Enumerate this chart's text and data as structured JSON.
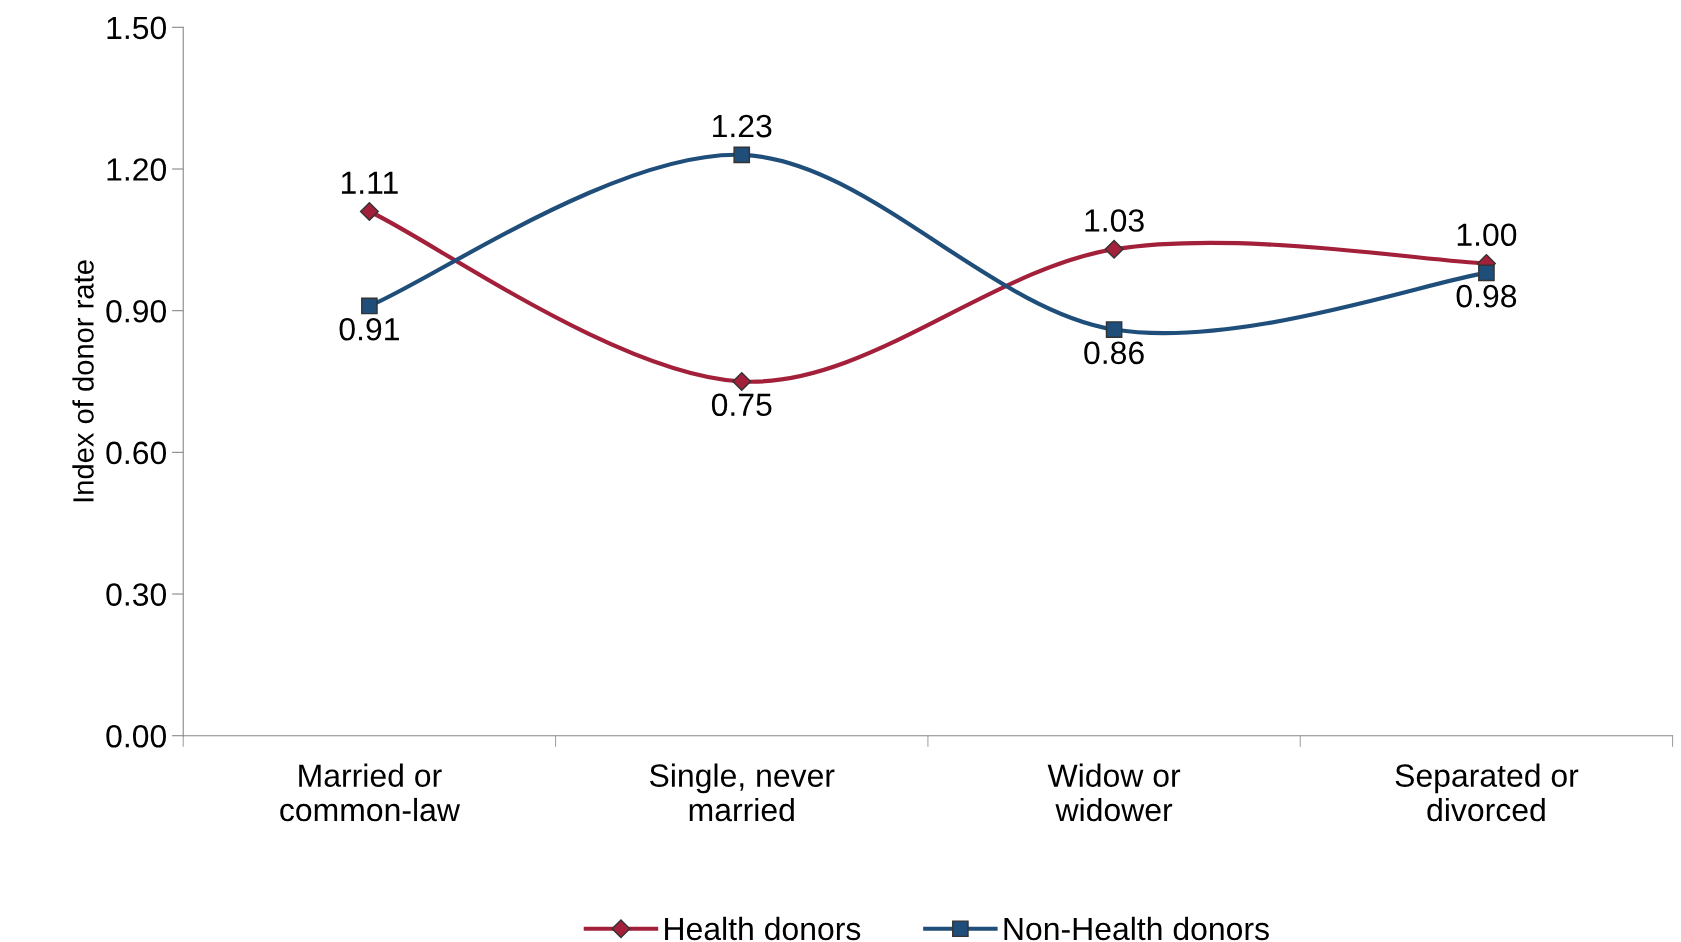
{
  "chart_data": {
    "type": "line",
    "ylabel": "Index of donor rate",
    "categories": [
      "Married or\ncommon-law",
      "Single, never\nmarried",
      "Widow or\nwidower",
      "Separated or\ndivorced"
    ],
    "series": [
      {
        "name": "Health donors",
        "color": "#a3203a",
        "marker": "diamond",
        "values": [
          1.11,
          0.75,
          1.03,
          1.0
        ],
        "value_labels": [
          "1.11",
          "0.75",
          "1.03",
          "1.00"
        ]
      },
      {
        "name": "Non-Health donors",
        "color": "#1f4e7a",
        "marker": "square",
        "values": [
          0.91,
          1.23,
          0.86,
          0.98
        ],
        "value_labels": [
          "0.91",
          "1.23",
          "0.86",
          "0.98"
        ]
      }
    ],
    "ylim": [
      0,
      1.5
    ],
    "yticks": [
      {
        "value": 0,
        "label": "0.00"
      },
      {
        "value": 0.3,
        "label": "0.30"
      },
      {
        "value": 0.6,
        "label": "0.60"
      },
      {
        "value": 0.9,
        "label": "0.90"
      },
      {
        "value": 1.2,
        "label": "1.20"
      },
      {
        "value": 1.5,
        "label": "1.50"
      }
    ],
    "grid": false,
    "legend": "bottom",
    "line_style": "solid"
  }
}
